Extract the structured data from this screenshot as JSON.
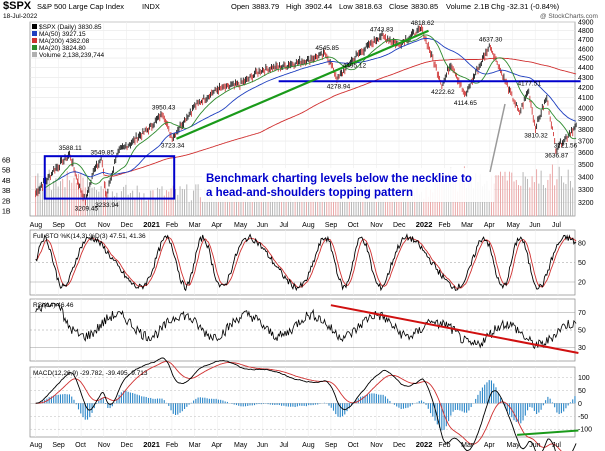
{
  "header": {
    "symbol": "$SPX",
    "name": "S&P 500 Large Cap Index",
    "exchange": "INDX",
    "date": "18-Jul-2022",
    "open_label": "Open",
    "open": "3883.79",
    "high_label": "High",
    "high": "3902.44",
    "low_label": "Low",
    "low": "3818.63",
    "close_label": "Close",
    "close": "3830.85",
    "volume_label": "Volume",
    "volume": "2.1B",
    "chg_label": "Chg",
    "chg": "-32.31 (-0.84%)",
    "watermark": "@ StockCharts.com"
  },
  "legend": {
    "price": "$SPX (Daily) 3830.85",
    "ma50": "MA(50) 3927.15",
    "ma200": "MA(200) 4362.08",
    "ma20": "MA(20) 3824.80",
    "volume": "Volume 2,138,239,744"
  },
  "colors": {
    "price": "#000000",
    "ma50": "#1f3fbf",
    "ma200": "#d03030",
    "ma20": "#2e8b2e",
    "volume_up": "#b0b0b0",
    "volume_down": "#e8a0a0",
    "annotation": "#0000cc",
    "trend_green": "#1a9a1a",
    "trend_red": "#d01010",
    "macd_hist": "#2a86c8"
  },
  "annotation": {
    "line1": "Benchmark charting levels below the neckline to",
    "line2": "a head-and-shoulders topping pattern"
  },
  "chart_data": [
    {
      "type": "line",
      "panel": "price",
      "scale": "log",
      "ylim": [
        3100,
        4900
      ],
      "yticks": [
        3200,
        3300,
        3400,
        3500,
        3600,
        3700,
        3800,
        3900,
        4000,
        4100,
        4200,
        4300,
        4400,
        4500,
        4600,
        4700,
        4800,
        4900
      ],
      "volume_ticks": [
        "1B",
        "2B",
        "3B",
        "4B",
        "5B",
        "6B"
      ],
      "x_month_labels": [
        "Aug",
        "Sep",
        "Oct",
        "Nov",
        "Dec",
        "2021",
        "Feb",
        "Mar",
        "Apr",
        "May",
        "Jun",
        "Jul",
        "Aug",
        "Sep",
        "Oct",
        "Nov",
        "Dec",
        "2022",
        "Feb",
        "Mar",
        "Apr",
        "May",
        "Jun",
        "Jul"
      ],
      "price_points": [
        {
          "t": 0,
          "v": 3271
        },
        {
          "t": 0.8,
          "v": 3450
        },
        {
          "t": 1.5,
          "v": 3588.11
        },
        {
          "t": 1.9,
          "v": 3330
        },
        {
          "t": 2.2,
          "v": 3209.45
        },
        {
          "t": 2.6,
          "v": 3480
        },
        {
          "t": 2.9,
          "v": 3549.85
        },
        {
          "t": 3.1,
          "v": 3233.94
        },
        {
          "t": 3.6,
          "v": 3600
        },
        {
          "t": 4.3,
          "v": 3700
        },
        {
          "t": 5.0,
          "v": 3810
        },
        {
          "t": 5.6,
          "v": 3950.43
        },
        {
          "t": 6.0,
          "v": 3723.34
        },
        {
          "t": 7.0,
          "v": 4020
        },
        {
          "t": 8.0,
          "v": 4180
        },
        {
          "t": 9.0,
          "v": 4230
        },
        {
          "t": 10.0,
          "v": 4380
        },
        {
          "t": 11.0,
          "v": 4420
        },
        {
          "t": 12.0,
          "v": 4480
        },
        {
          "t": 12.8,
          "v": 4545.85
        },
        {
          "t": 13.3,
          "v": 4278.94
        },
        {
          "t": 14.0,
          "v": 4495.12
        },
        {
          "t": 15.2,
          "v": 4743.83
        },
        {
          "t": 16.0,
          "v": 4650
        },
        {
          "t": 17.0,
          "v": 4818.62
        },
        {
          "t": 17.9,
          "v": 4222.62
        },
        {
          "t": 18.3,
          "v": 4450
        },
        {
          "t": 18.9,
          "v": 4114.65
        },
        {
          "t": 20.0,
          "v": 4637.3
        },
        {
          "t": 20.6,
          "v": 4300
        },
        {
          "t": 21.3,
          "v": 3950
        },
        {
          "t": 21.7,
          "v": 4177.51
        },
        {
          "t": 22.0,
          "v": 3810.32
        },
        {
          "t": 22.5,
          "v": 4100
        },
        {
          "t": 22.9,
          "v": 3636.87
        },
        {
          "t": 23.3,
          "v": 3721.56
        },
        {
          "t": 23.8,
          "v": 3830.85
        }
      ],
      "price_labels": [
        {
          "text": "3588.11",
          "t": 1.5,
          "v": 3588.11,
          "pos": "above"
        },
        {
          "text": "3549.85",
          "t": 2.9,
          "v": 3549.85,
          "pos": "above"
        },
        {
          "text": "3209.45",
          "t": 2.2,
          "v": 3209.45,
          "pos": "below"
        },
        {
          "text": "3233.94",
          "t": 3.1,
          "v": 3233.94,
          "pos": "below"
        },
        {
          "text": "3950.43",
          "t": 5.6,
          "v": 3950.43,
          "pos": "above"
        },
        {
          "text": "3723.34",
          "t": 6.0,
          "v": 3723.34,
          "pos": "below"
        },
        {
          "text": "4545.85",
          "t": 12.8,
          "v": 4545.85,
          "pos": "above"
        },
        {
          "text": "4278.94",
          "t": 13.3,
          "v": 4278.94,
          "pos": "below"
        },
        {
          "text": "4495.12",
          "t": 14.0,
          "v": 4495.12,
          "pos": "below"
        },
        {
          "text": "4743.83",
          "t": 15.2,
          "v": 4743.83,
          "pos": "above"
        },
        {
          "text": "4818.62",
          "t": 17.0,
          "v": 4818.62,
          "pos": "above"
        },
        {
          "text": "4222.62",
          "t": 17.9,
          "v": 4222.62,
          "pos": "below"
        },
        {
          "text": "4114.65",
          "t": 18.9,
          "v": 4114.65,
          "pos": "below"
        },
        {
          "text": "4637.30",
          "t": 20.0,
          "v": 4637.3,
          "pos": "above"
        },
        {
          "text": "4177.51",
          "t": 21.7,
          "v": 4177.51,
          "pos": "above"
        },
        {
          "text": "3810.32",
          "t": 22.0,
          "v": 3810.32,
          "pos": "below"
        },
        {
          "text": "3636.87",
          "t": 22.9,
          "v": 3636.87,
          "pos": "below"
        },
        {
          "text": "3721.56",
          "t": 23.3,
          "v": 3721.56,
          "pos": "below"
        }
      ],
      "neckline": {
        "t0": 10.7,
        "t1": 24.0,
        "v": 4260
      },
      "support_trendline": {
        "t0": 6.2,
        "v0": 3720,
        "t1": 17.3,
        "v1": 4800
      },
      "box": {
        "t0": 0.4,
        "t1": 6.1,
        "v0": 3230,
        "v1": 3570
      }
    },
    {
      "type": "line",
      "panel": "stochastic",
      "title": "Full STO %K(14,3) %D(3) 47.51, 41.36",
      "k_value": "47.51",
      "d_value": "41.36",
      "ylim": [
        0,
        100
      ],
      "yticks": [
        20,
        50,
        80
      ]
    },
    {
      "type": "line",
      "panel": "rsi",
      "title": "RSI(14) 46.46",
      "value": "46.46",
      "ylim": [
        15,
        85
      ],
      "yticks": [
        30,
        50,
        70
      ],
      "trendline": {
        "t0": 13.0,
        "v0": 78,
        "t1": 23.9,
        "v1": 24
      }
    },
    {
      "type": "bar",
      "panel": "macd",
      "title": "MACD(12,26,9) -29.782, -39.495, 9.713",
      "macd": "-29.782",
      "signal": "-39.495",
      "hist": "9.713",
      "ylim": [
        -130,
        140
      ],
      "yticks": [
        -100,
        -50,
        0,
        50,
        100
      ],
      "trendline": {
        "t0": 21.2,
        "v0": -122,
        "t1": 23.9,
        "v1": -105
      }
    }
  ]
}
